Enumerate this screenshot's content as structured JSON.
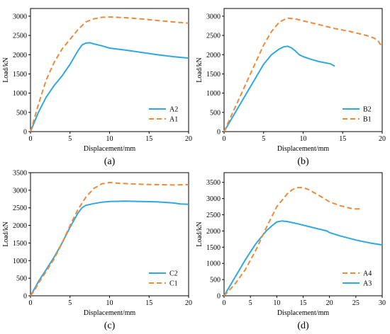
{
  "colors": {
    "solid": "#2ea8df",
    "dashed": "#ee8a3a"
  },
  "chart_data": [
    {
      "type": "line",
      "panel": "(a)",
      "xlabel": "Displacement/mm",
      "ylabel": "Load/kN",
      "xlim": [
        0,
        20
      ],
      "ylim": [
        0,
        3200
      ],
      "xticks": [
        0,
        5,
        10,
        15,
        20
      ],
      "yticks": [
        0,
        500,
        1000,
        1500,
        2000,
        2500,
        3000
      ],
      "legend_position": "bottom-right",
      "legend_order": [
        0,
        1
      ],
      "series": [
        {
          "name": "A2",
          "style": "solid",
          "x": [
            0,
            1,
            2,
            3,
            4,
            5,
            6,
            6.5,
            7,
            7.5,
            8,
            9,
            10,
            12,
            14,
            16,
            18,
            20
          ],
          "y": [
            0,
            500,
            900,
            1200,
            1450,
            1750,
            2100,
            2250,
            2300,
            2310,
            2280,
            2230,
            2170,
            2120,
            2060,
            2000,
            1950,
            1910
          ]
        },
        {
          "name": "A1",
          "style": "dashed",
          "x": [
            0,
            1,
            2,
            3,
            4,
            5,
            6,
            7,
            8,
            9,
            10,
            11,
            12,
            14,
            16,
            18,
            20
          ],
          "y": [
            0,
            700,
            1350,
            1800,
            2150,
            2400,
            2650,
            2850,
            2930,
            2970,
            2980,
            2970,
            2960,
            2930,
            2890,
            2850,
            2820
          ]
        }
      ]
    },
    {
      "type": "line",
      "panel": "(b)",
      "xlabel": "Displacement/mm",
      "ylabel": "Load/kN",
      "xlim": [
        0,
        20
      ],
      "ylim": [
        0,
        3200
      ],
      "xticks": [
        0,
        5,
        10,
        15,
        20
      ],
      "yticks": [
        0,
        500,
        1000,
        1500,
        2000,
        2500,
        3000
      ],
      "legend_position": "bottom-right",
      "legend_order": [
        0,
        1
      ],
      "series": [
        {
          "name": "B2",
          "style": "solid",
          "x": [
            0,
            1,
            2,
            3,
            4,
            5,
            6,
            7,
            7.5,
            8,
            8.5,
            9,
            9.5,
            10,
            11,
            12,
            13,
            13.5,
            14
          ],
          "y": [
            0,
            350,
            700,
            1050,
            1400,
            1750,
            2000,
            2150,
            2200,
            2220,
            2180,
            2100,
            2000,
            1950,
            1880,
            1820,
            1780,
            1760,
            1700
          ]
        },
        {
          "name": "B1",
          "style": "dashed",
          "x": [
            0,
            1,
            2,
            3,
            4,
            5,
            6,
            7,
            8,
            9,
            10,
            12,
            14,
            16,
            18,
            19,
            19.5,
            20
          ],
          "y": [
            0,
            450,
            900,
            1350,
            1800,
            2250,
            2600,
            2850,
            2950,
            2930,
            2880,
            2780,
            2680,
            2600,
            2500,
            2430,
            2350,
            2200
          ]
        }
      ]
    },
    {
      "type": "line",
      "panel": "(c)",
      "xlabel": "Displacement/mm",
      "ylabel": "Load/kN",
      "xlim": [
        0,
        20
      ],
      "ylim": [
        0,
        3500
      ],
      "xticks": [
        0,
        5,
        10,
        15,
        20
      ],
      "yticks": [
        0,
        500,
        1000,
        1500,
        2000,
        2500,
        3000,
        3500
      ],
      "legend_position": "bottom-right",
      "legend_order": [
        0,
        1
      ],
      "series": [
        {
          "name": "C2",
          "style": "solid",
          "x": [
            0,
            0.5,
            1,
            2,
            3,
            4,
            5,
            6,
            6.5,
            7,
            8,
            9,
            10,
            12,
            14,
            16,
            18,
            19,
            20
          ],
          "y": [
            0,
            200,
            400,
            750,
            1100,
            1500,
            1950,
            2350,
            2500,
            2570,
            2620,
            2660,
            2680,
            2690,
            2680,
            2670,
            2640,
            2610,
            2600
          ]
        },
        {
          "name": "C1",
          "style": "dashed",
          "x": [
            0,
            0.5,
            1,
            2,
            3,
            4,
            5,
            6,
            7,
            8,
            9,
            10,
            11,
            12,
            14,
            16,
            18,
            20
          ],
          "y": [
            0,
            150,
            350,
            700,
            1050,
            1500,
            2000,
            2450,
            2800,
            3050,
            3180,
            3220,
            3200,
            3190,
            3170,
            3160,
            3150,
            3160
          ]
        }
      ]
    },
    {
      "type": "line",
      "panel": "(d)",
      "xlabel": "Displacement/mm",
      "ylabel": "Load/kN",
      "xlim": [
        0,
        30
      ],
      "ylim": [
        0,
        3800
      ],
      "xticks": [
        0,
        5,
        10,
        15,
        20,
        25,
        30
      ],
      "yticks": [
        0,
        500,
        1000,
        1500,
        2000,
        2500,
        3000,
        3500
      ],
      "legend_position": "bottom-right",
      "legend_order": [
        1,
        0
      ],
      "series": [
        {
          "name": "A3",
          "style": "solid",
          "x": [
            0,
            2,
            4,
            6,
            8,
            9,
            10,
            11,
            12,
            14,
            16,
            18,
            19.5,
            20,
            22,
            25,
            28,
            30
          ],
          "y": [
            0,
            550,
            1100,
            1600,
            2000,
            2150,
            2280,
            2310,
            2290,
            2220,
            2140,
            2060,
            2000,
            1950,
            1850,
            1720,
            1620,
            1570
          ]
        },
        {
          "name": "A4",
          "style": "dashed",
          "x": [
            0,
            2,
            4,
            6,
            8,
            10,
            12,
            13,
            14,
            15,
            16,
            18,
            20,
            22,
            24,
            25,
            26
          ],
          "y": [
            0,
            350,
            800,
            1400,
            2100,
            2750,
            3150,
            3280,
            3340,
            3340,
            3280,
            3100,
            2900,
            2780,
            2700,
            2680,
            2680
          ]
        }
      ]
    }
  ]
}
